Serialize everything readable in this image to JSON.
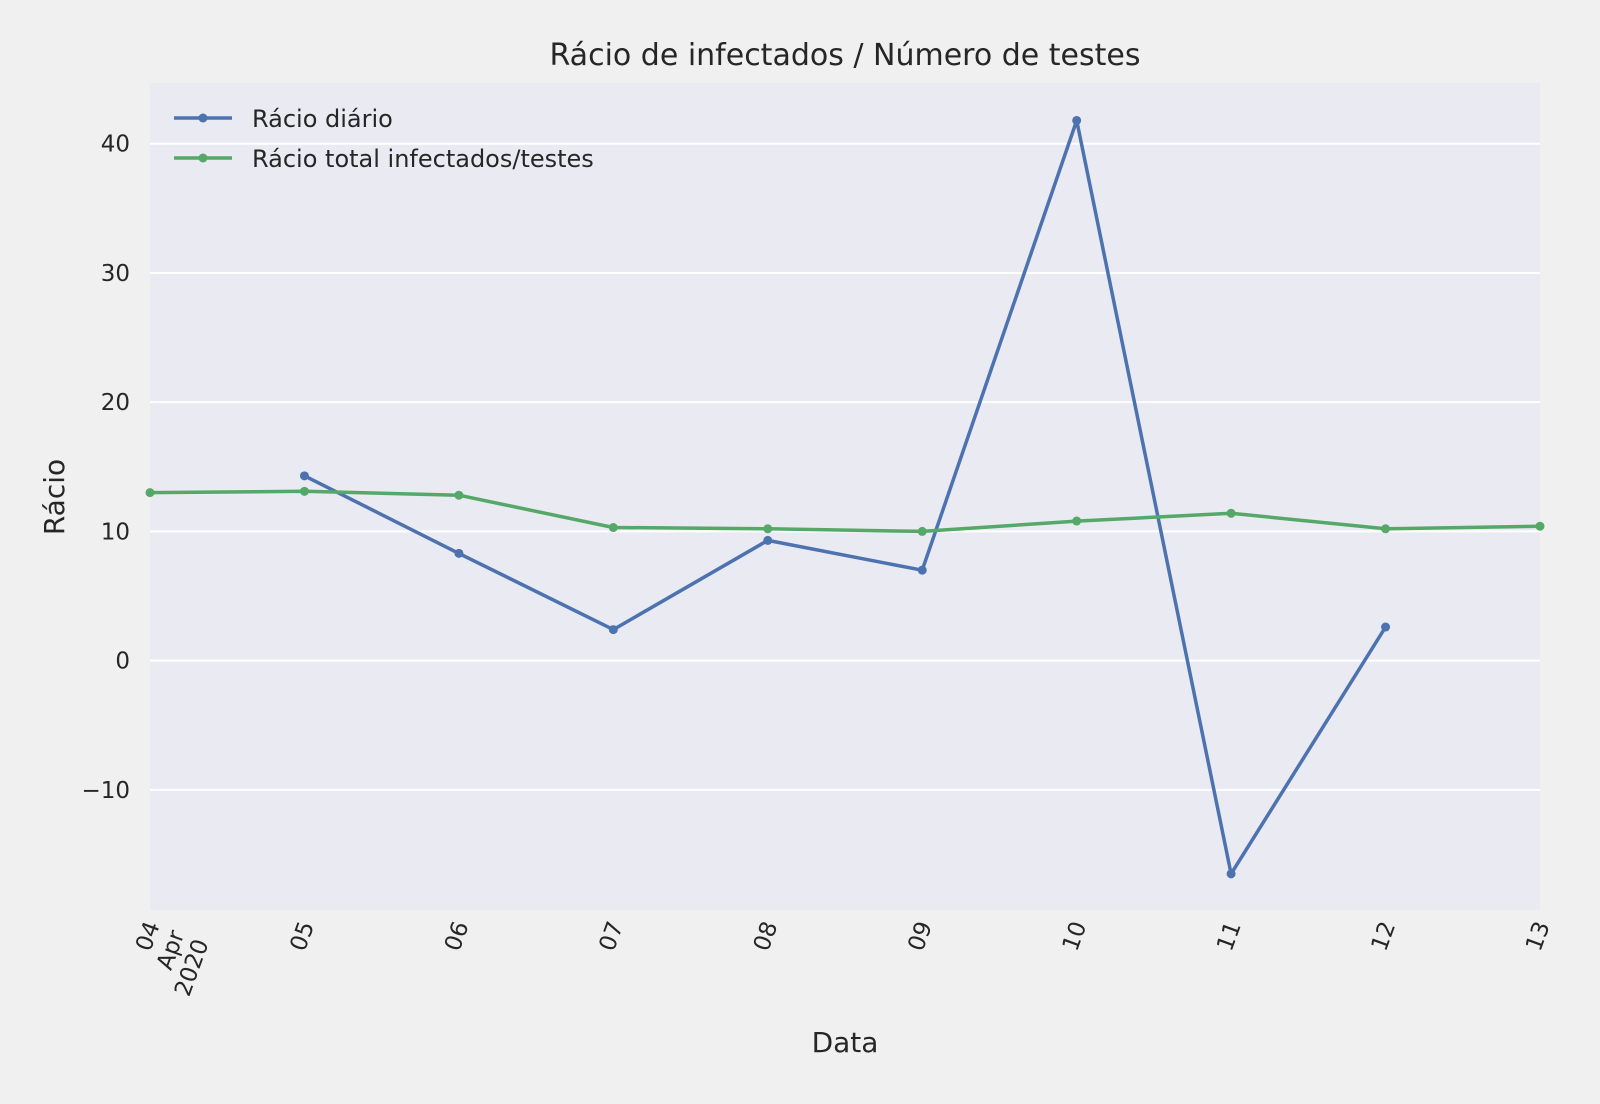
{
  "chart_data": {
    "type": "line",
    "title": "Rácio de infectados / Número de testes",
    "xlabel": "Data",
    "ylabel": "Rácio",
    "x": [
      "2020-04-04",
      "2020-04-05",
      "2020-04-06",
      "2020-04-07",
      "2020-04-08",
      "2020-04-09",
      "2020-04-10",
      "2020-04-11",
      "2020-04-12",
      "2020-04-13"
    ],
    "x_tick_labels": [
      [
        "04",
        "Apr",
        "2020"
      ],
      [
        "05"
      ],
      [
        "06"
      ],
      [
        "07"
      ],
      [
        "08"
      ],
      [
        "09"
      ],
      [
        "10"
      ],
      [
        "11"
      ],
      [
        "12"
      ],
      [
        "13"
      ]
    ],
    "ylim": [
      -19.3,
      44.7
    ],
    "y_ticks": [
      -10,
      0,
      10,
      20,
      30,
      40
    ],
    "y_tick_labels": [
      "−10",
      "0",
      "10",
      "20",
      "30",
      "40"
    ],
    "grid": true,
    "legend_position": "top-left",
    "series": [
      {
        "name": "Rácio diário",
        "color": "#4c72b0",
        "values": [
          null,
          14.3,
          8.3,
          2.4,
          9.3,
          7.0,
          41.8,
          -16.5,
          2.6,
          null
        ]
      },
      {
        "name": "Rácio total infectados/testes",
        "color": "#55a868",
        "values": [
          13.0,
          13.1,
          12.8,
          10.3,
          10.2,
          10.0,
          10.8,
          11.4,
          10.2,
          10.4
        ]
      }
    ],
    "colors": {
      "plot_background": "#eaeaf2",
      "figure_background": "#f0f0f0",
      "grid": "#ffffff"
    }
  }
}
